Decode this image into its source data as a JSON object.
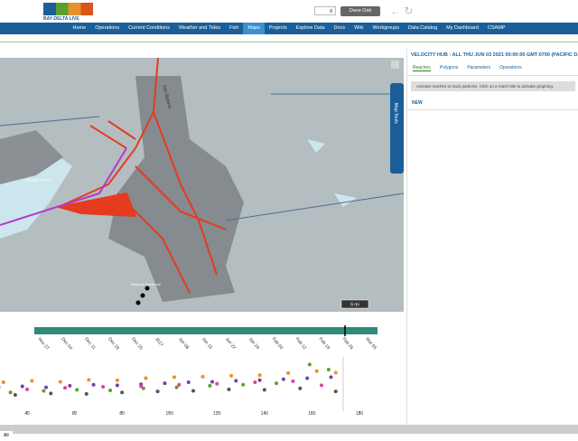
{
  "header": {
    "logo": "BAY-DELTA LIVE",
    "cart_count": "0",
    "user": "Dave Osti"
  },
  "nav": [
    "Home",
    "Operations",
    "Current Conditions",
    "Weather and Tides",
    "Fish",
    "Maps",
    "Projects",
    "Explore Data",
    "Docs",
    "Wiki",
    "Workgroups",
    "Data Catalog",
    "My Dashboard",
    "CSAMP"
  ],
  "nav_active": 5,
  "map": {
    "labels": [
      "Yolo Bypass",
      "GRIZZLY BAY",
      "Bethany Reservoir"
    ],
    "tools": "Map Tools",
    "scale": "6 mi"
  },
  "panel": {
    "title": "VELOCITY HUB : ALL THU JUN 03 2021 00:00:00 GMT-0700 (PACIFIC DAYL",
    "tabs": [
      "Reaches",
      "Polygons",
      "Parameters",
      "Operations"
    ],
    "message": "Activate reaches to track particles. Click on a reach title to activate graphing.",
    "new": "NEW"
  },
  "timeline": {
    "dates": [
      "Nov 27",
      "Dec 04",
      "Dec 11",
      "Dec 18",
      "Dec 25",
      "2017",
      "Jan 08",
      "Jan 15",
      "Jan 22",
      "Jan 29",
      "Feb 05",
      "Feb 12",
      "Feb 19",
      "Feb 26",
      "Mar 05"
    ]
  },
  "chart_data": {
    "type": "scatter",
    "xlim": [
      28,
      182
    ],
    "ylim": [
      0,
      10
    ],
    "xticks": [
      40,
      60,
      80,
      100,
      120,
      140,
      160,
      180
    ],
    "series": [
      {
        "name": "purple",
        "color": "#7b3fa0",
        "x": [
          28,
          38,
          48,
          58,
          68,
          78,
          88,
          98,
          108,
          118,
          128,
          138,
          148,
          158,
          168
        ],
        "y": [
          4,
          4.2,
          4,
          4.3,
          4.5,
          4.4,
          4.6,
          4.8,
          5,
          5.1,
          5.3,
          5.4,
          5.6,
          5.8,
          6
        ]
      },
      {
        "name": "orange",
        "color": "#e8912a",
        "x": [
          30,
          42,
          54,
          66,
          78,
          90,
          102,
          114,
          126,
          138,
          150,
          162,
          170
        ],
        "y": [
          5,
          5.3,
          5.1,
          5.5,
          5.4,
          5.8,
          6,
          6.1,
          6.3,
          6.4,
          6.8,
          7.2,
          6.9
        ]
      },
      {
        "name": "green",
        "color": "#5aa02c",
        "x": [
          33,
          47,
          61,
          75,
          89,
          103,
          117,
          131,
          145,
          159,
          167
        ],
        "y": [
          3,
          3.3,
          3.5,
          3.4,
          3.8,
          4,
          4.3,
          4.5,
          4.8,
          8.5,
          7.5
        ]
      },
      {
        "name": "gray",
        "color": "#555555",
        "x": [
          35,
          50,
          65,
          80,
          95,
          110,
          125,
          140,
          155,
          170
        ],
        "y": [
          2.5,
          2.8,
          2.7,
          3,
          3.2,
          3.3,
          3.6,
          3.5,
          3.8,
          3.2
        ]
      },
      {
        "name": "pink",
        "color": "#e0409a",
        "x": [
          40,
          56,
          72,
          88,
          104,
          120,
          136,
          152,
          164
        ],
        "y": [
          3.6,
          3.9,
          4.1,
          4.2,
          4.5,
          4.7,
          5,
          5.2,
          4.4
        ]
      }
    ]
  },
  "footer": "All"
}
